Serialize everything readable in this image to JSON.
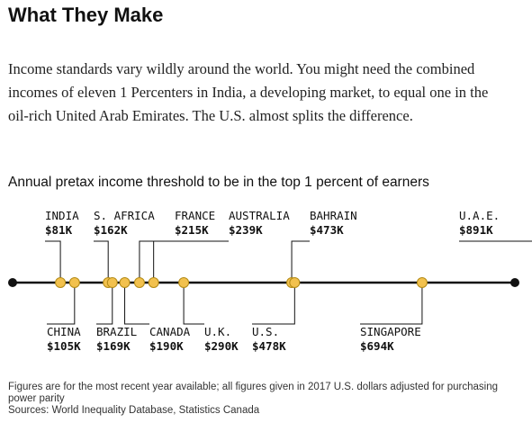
{
  "header": {
    "title": "What They Make",
    "intro": "Income standards vary wildly around the world. You might need the combined incomes of eleven 1 Percenters in India, a developing market, to equal one in the oil-rich United Arab Emirates. The U.S. almost splits the difference.",
    "subtitle": "Annual pretax income threshold to be in the top 1 percent of earners"
  },
  "chart_data": {
    "type": "scatter",
    "title": "",
    "xlabel": "",
    "ylabel": "",
    "unit": "$K",
    "xlim": [
      0,
      1000
    ],
    "points": [
      {
        "country": "INDIA",
        "label": "$81K",
        "value": 81,
        "side": "top"
      },
      {
        "country": "CHINA",
        "label": "$105K",
        "value": 105,
        "side": "bottom"
      },
      {
        "country": "S. AFRICA",
        "label": "$162K",
        "value": 162,
        "side": "top"
      },
      {
        "country": "BRAZIL",
        "label": "$169K",
        "value": 169,
        "side": "bottom"
      },
      {
        "country": "CANADA",
        "label": "$190K",
        "value": 190,
        "side": "bottom"
      },
      {
        "country": "FRANCE",
        "label": "$215K",
        "value": 215,
        "side": "top"
      },
      {
        "country": "AUSTRALIA",
        "label": "$239K",
        "value": 239,
        "side": "top"
      },
      {
        "country": "U.K.",
        "label": "$290K",
        "value": 290,
        "side": "bottom"
      },
      {
        "country": "BAHRAIN",
        "label": "$473K",
        "value": 473,
        "side": "top"
      },
      {
        "country": "U.S.",
        "label": "$478K",
        "value": 478,
        "side": "bottom"
      },
      {
        "country": "SINGAPORE",
        "label": "$694K",
        "value": 694,
        "side": "bottom"
      },
      {
        "country": "U.A.E.",
        "label": "$891K",
        "value": 891,
        "side": "top"
      }
    ],
    "colors": {
      "dot": "#f2c14e",
      "dot_outline": "#b38a14",
      "line": "#111111"
    }
  },
  "footer": {
    "note": "Figures are for the most recent year available; all figures given in 2017 U.S. dollars adjusted for purchasing power parity",
    "sources": "Sources: World Inequality Database, Statistics Canada"
  }
}
